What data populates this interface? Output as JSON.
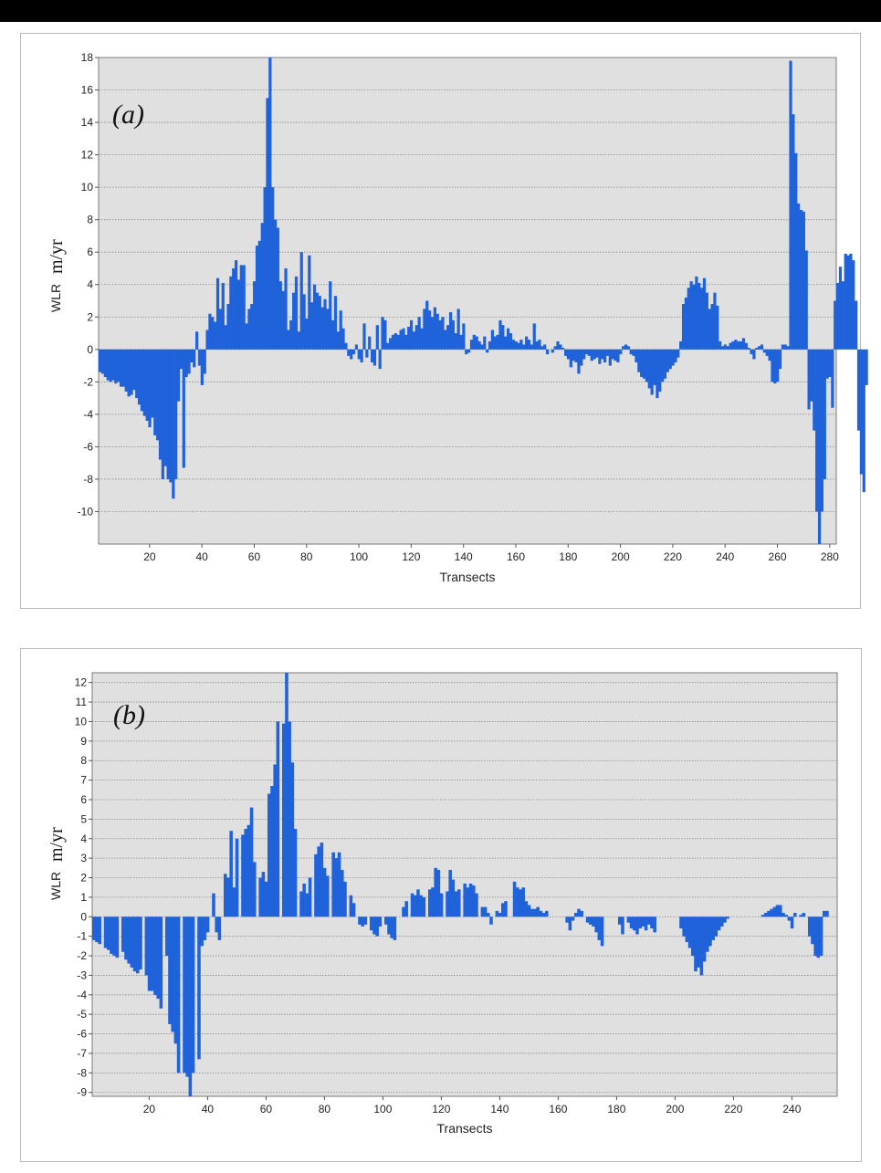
{
  "chart_data": [
    {
      "id": "a",
      "type": "bar",
      "panel_label": "(a)",
      "xlabel": "Transects",
      "ylabel_prefix": "WLR",
      "ylabel_unit": "m/yr",
      "xlim": [
        1,
        282
      ],
      "ylim": [
        -12,
        18
      ],
      "xticks": [
        20,
        40,
        60,
        80,
        100,
        120,
        140,
        160,
        180,
        200,
        220,
        240,
        260,
        280
      ],
      "yticks": [
        18,
        16,
        14,
        12,
        10,
        8,
        6,
        4,
        2,
        0,
        -2,
        -4,
        -6,
        -8,
        -10
      ],
      "grid": true,
      "bar_color": "#1f62d9",
      "values": [
        -1.4,
        -1.5,
        -1.7,
        -1.9,
        -2.0,
        -1.9,
        -2.1,
        -2.0,
        -2.3,
        -2.3,
        -2.6,
        -2.9,
        -2.8,
        -2.5,
        -3.0,
        -3.4,
        -3.8,
        -4.1,
        -4.4,
        -4.8,
        -4.2,
        -5.3,
        -5.6,
        -6.8,
        -8.0,
        -7.2,
        -8.0,
        -8.2,
        -9.2,
        -8.0,
        -3.2,
        -1.2,
        -7.3,
        -1.7,
        -1.5,
        -0.8,
        -1.1,
        1.1,
        -1.0,
        -2.2,
        -1.5,
        1.2,
        2.2,
        2.0,
        1.7,
        4.4,
        2.5,
        4.1,
        1.5,
        2.8,
        4.5,
        5.0,
        5.5,
        4.3,
        5.2,
        5.2,
        1.6,
        2.5,
        2.8,
        4.2,
        6.4,
        6.7,
        7.8,
        10.0,
        15.5,
        18.0,
        10.0,
        8.0,
        7.5,
        4.2,
        3.6,
        5.0,
        1.2,
        1.8,
        3.5,
        4.5,
        1.1,
        6.0,
        3.4,
        1.9,
        5.8,
        2.9,
        4.0,
        3.5,
        3.3,
        2.6,
        3.1,
        2.5,
        4.2,
        1.8,
        3.3,
        1.1,
        2.4,
        1.3,
        0.4,
        -0.4,
        -0.6,
        -0.3,
        0.3,
        -0.6,
        -0.8,
        1.6,
        -0.5,
        0.8,
        -0.8,
        -1.0,
        1.5,
        -1.2,
        2.0,
        1.8,
        0.4,
        0.7,
        0.9,
        1.0,
        0.9,
        1.2,
        1.3,
        0.9,
        1.4,
        1.8,
        1.1,
        1.5,
        2.0,
        1.3,
        2.5,
        3.0,
        2.4,
        2.0,
        2.6,
        2.2,
        1.8,
        2.0,
        1.2,
        1.5,
        2.3,
        1.8,
        1.0,
        2.5,
        0.9,
        1.6,
        -0.3,
        -0.2,
        0.6,
        0.9,
        0.8,
        0.5,
        0.3,
        0.8,
        -0.2,
        0.5,
        1.2,
        0.8,
        0.9,
        1.8,
        1.5,
        0.8,
        1.3,
        1.0,
        0.6,
        0.5,
        0.4,
        0.6,
        0.3,
        0.8,
        0.6,
        0.3,
        1.6,
        0.5,
        0.6,
        0.2,
        0.3,
        -0.3,
        0.0,
        -0.2,
        0.2,
        0.5,
        0.3,
        0.1,
        -0.4,
        -0.6,
        -1.1,
        -0.7,
        -0.8,
        -1.5,
        -1.0,
        -0.6,
        -0.3,
        -0.4,
        -0.7,
        -0.6,
        -0.5,
        -0.9,
        -0.6,
        -0.8,
        -0.4,
        -1.0,
        -0.6,
        -0.7,
        -0.8,
        -0.3,
        0.2,
        0.3,
        0.2,
        -0.3,
        -0.4,
        -0.8,
        -1.4,
        -1.7,
        -1.8,
        -2.0,
        -2.4,
        -2.8,
        -2.2,
        -3.0,
        -2.6,
        -2.0,
        -1.8,
        -1.4,
        -1.2,
        -1.0,
        -0.8,
        -0.5,
        0.5,
        2.8,
        3.2,
        3.8,
        4.2,
        4.0,
        4.5,
        4.1,
        3.8,
        4.4,
        3.5,
        2.5,
        2.8,
        3.5,
        2.7,
        0.5,
        0.2,
        0.3,
        0.2,
        0.4,
        0.5,
        0.6,
        0.5,
        0.5,
        0.7,
        0.4,
        0.1,
        -0.3,
        -0.6,
        0.1,
        0.2,
        0.3,
        -0.2,
        -0.4,
        -0.7,
        -2.0,
        -2.1,
        -2.0,
        -1.2,
        0.3,
        0.3,
        0.2,
        17.8,
        14.5,
        12.1,
        9.0,
        8.6,
        8.5,
        6.1,
        -3.7,
        -3.2,
        -5.0,
        -10.0,
        -12.0,
        -10.0,
        -8.0,
        -1.8,
        -1.7,
        -3.6,
        3.0,
        4.1,
        5.1,
        4.2,
        5.9,
        5.8,
        5.9,
        5.5,
        3.0,
        -5.0,
        -7.7,
        -8.8,
        -2.2
      ]
    },
    {
      "id": "b",
      "type": "bar",
      "panel_label": "(b)",
      "xlabel": "Transects",
      "ylabel_prefix": "WLR",
      "ylabel_unit": "m/yr",
      "xlim": [
        1,
        255
      ],
      "ylim": [
        -9.2,
        12.5
      ],
      "xticks": [
        20,
        40,
        60,
        80,
        100,
        120,
        140,
        160,
        180,
        200,
        220,
        240
      ],
      "yticks": [
        12,
        11,
        10,
        9,
        8,
        7,
        6,
        5,
        4,
        3,
        2,
        1,
        0,
        -1,
        -2,
        -3,
        -4,
        -5,
        -6,
        -7,
        -8,
        -9
      ],
      "grid": true,
      "bar_color": "#1f62d9",
      "values": [
        -1.2,
        -1.3,
        -1.4,
        0.0,
        -1.6,
        -1.7,
        -1.9,
        -2.0,
        -2.1,
        0.0,
        -1.8,
        -2.2,
        -2.4,
        -2.6,
        -2.8,
        -2.9,
        -2.7,
        0.0,
        -3.0,
        -3.8,
        -3.8,
        -4.0,
        -4.2,
        -4.7,
        0.0,
        -2.0,
        -5.5,
        -5.9,
        -6.5,
        -8.0,
        0.0,
        -8.0,
        -8.2,
        -9.2,
        -8.0,
        0.0,
        -7.3,
        -1.5,
        -1.2,
        -0.8,
        0.0,
        1.2,
        -0.8,
        -1.2,
        0.0,
        2.2,
        2.0,
        4.4,
        1.5,
        4.0,
        0.0,
        4.2,
        4.5,
        4.7,
        5.6,
        2.8,
        0.0,
        2.0,
        2.3,
        1.8,
        6.3,
        6.7,
        7.8,
        10.0,
        0.0,
        9.9,
        12.5,
        10.0,
        7.9,
        4.5,
        0.0,
        1.3,
        1.7,
        1.2,
        2.0,
        0.0,
        3.2,
        3.6,
        3.8,
        2.5,
        2.1,
        0.0,
        3.3,
        3.0,
        3.3,
        2.4,
        1.8,
        0.0,
        1.1,
        0.7,
        0.0,
        -0.4,
        -0.5,
        -0.4,
        0.0,
        -0.7,
        -0.9,
        -1.0,
        -0.5,
        0.0,
        -0.4,
        -0.9,
        -1.1,
        -1.2,
        0.0,
        0.0,
        0.5,
        0.8,
        0.0,
        1.2,
        1.1,
        1.4,
        1.1,
        1.0,
        0.0,
        1.4,
        1.5,
        2.5,
        2.4,
        1.2,
        0.0,
        1.3,
        2.4,
        1.9,
        1.3,
        1.4,
        0.0,
        1.7,
        1.5,
        1.7,
        1.6,
        1.2,
        0.0,
        0.5,
        0.5,
        0.2,
        -0.4,
        0.0,
        0.3,
        0.2,
        0.7,
        0.8,
        0.0,
        0.0,
        1.8,
        1.5,
        1.4,
        1.5,
        0.8,
        0.6,
        0.4,
        0.4,
        0.5,
        0.3,
        0.2,
        0.3,
        0.0,
        0.0,
        0.0,
        0.0,
        0.0,
        0.0,
        -0.3,
        -0.7,
        -0.2,
        0.2,
        0.4,
        0.3,
        0.0,
        -0.3,
        -0.4,
        -0.5,
        -0.8,
        -1.2,
        -1.5,
        0.0,
        0.0,
        0.0,
        0.0,
        0.0,
        -0.4,
        -0.9,
        0.0,
        -0.3,
        -0.6,
        -0.7,
        -0.9,
        -0.6,
        -0.5,
        -0.7,
        -0.4,
        -0.6,
        -0.8,
        0.0,
        0.0,
        0.0,
        0.0,
        0.0,
        0.0,
        0.0,
        0.0,
        -0.6,
        -1.0,
        -1.3,
        -1.6,
        -2.0,
        -2.8,
        -2.6,
        -3.0,
        -2.3,
        -1.8,
        -1.5,
        -1.2,
        -1.0,
        -0.7,
        -0.5,
        -0.3,
        -0.1,
        0.0,
        0.0,
        0.0,
        0.0,
        0.0,
        0.0,
        0.0,
        0.0,
        0.0,
        0.0,
        0.0,
        0.1,
        0.2,
        0.3,
        0.4,
        0.5,
        0.6,
        0.6,
        0.2,
        0.1,
        -0.2,
        -0.6,
        0.2,
        0.0,
        0.1,
        0.2,
        0.0,
        -1.0,
        -1.4,
        -2.0,
        -2.1,
        -2.0,
        0.3,
        0.3
      ]
    }
  ]
}
